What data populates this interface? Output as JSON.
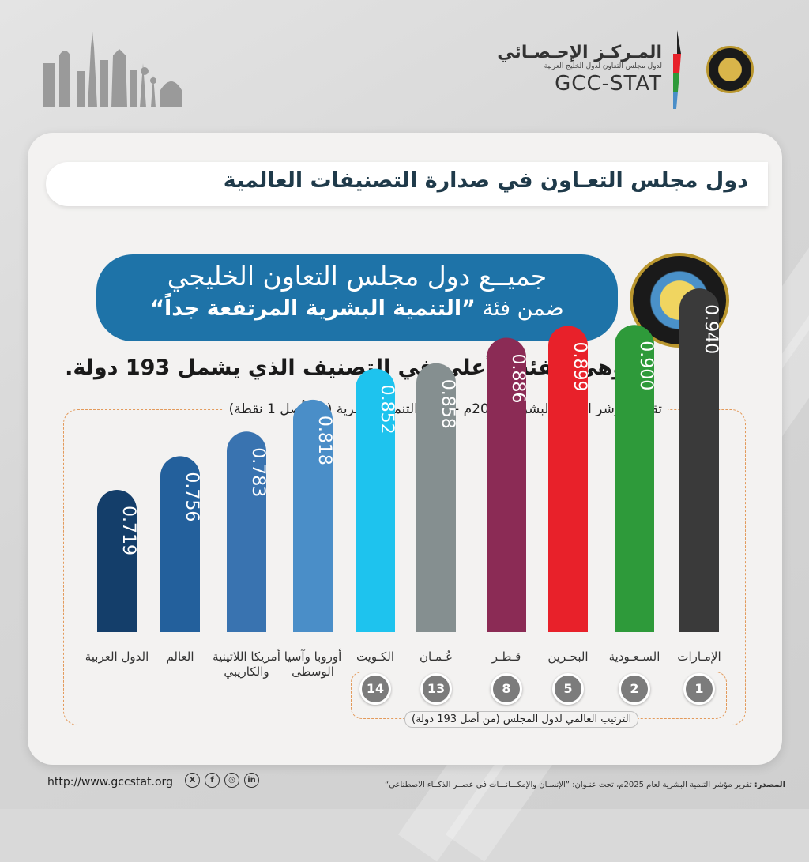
{
  "header": {
    "org_ar": "المـركـز الإحـصـائي",
    "org_sub_ar": "لدول مجلس التعاون لدول الخليج العربية",
    "org_en": "GCC-STAT"
  },
  "banner": {
    "title": "دول مجلس التعـاون في صدارة التصنيفات العالمية"
  },
  "highlight": {
    "line1": "جميــع دول مجلس التعاون الخليجي",
    "line2_prefix": "ضمن فئة ",
    "line2_bold": "”التنمية البشرية المرتفعة جداً“"
  },
  "subtitle": "وهي الفئة الأعلى في التصنيف الذي يشمل 193 دولة.",
  "chart_data": {
    "type": "bar",
    "title": "تقرير مؤشر التنمية البشرية 2025م - درجة التنمية البشرية (من أصل 1 نقطة)",
    "categories": [
      "الإمـارات",
      "السـعـودية",
      "البحـرين",
      "قـطـر",
      "عُـمـان",
      "الكـويت",
      "أوروبا وآسيا الوسطى",
      "أمريكا اللاتينية والكاريبي",
      "العالم",
      "الدول العربية"
    ],
    "values": [
      0.94,
      0.9,
      0.899,
      0.886,
      0.858,
      0.852,
      0.818,
      0.783,
      0.756,
      0.719
    ],
    "value_labels": [
      "0.940",
      "0.900",
      "0.899",
      "0.886",
      "0.858",
      "0.852",
      "0.818",
      "0.783",
      "0.756",
      "0.719"
    ],
    "colors": [
      "#3a3a3a",
      "#2e9a3a",
      "#e8212a",
      "#8b2b55",
      "#858f90",
      "#1ec3ee",
      "#4a8ec8",
      "#3973b0",
      "#23609c",
      "#143e6a"
    ],
    "ranks": [
      "1",
      "2",
      "5",
      "8",
      "13",
      "14"
    ],
    "rank_caption": "الترتيب العالمي لدول المجلس (من أصل 193 دولة)"
  },
  "footer": {
    "url": "http://www.gccstat.org",
    "social": [
      "X",
      "f",
      "◎",
      "in"
    ],
    "source_label": "المصدر:",
    "source_text": " تقرير مؤشر التنمية البشرية لعام 2025م، تحت عنـوان: ”الإنسـان والإمكـــانـــات في عصــر الذكــاء الاصطناعي“"
  }
}
